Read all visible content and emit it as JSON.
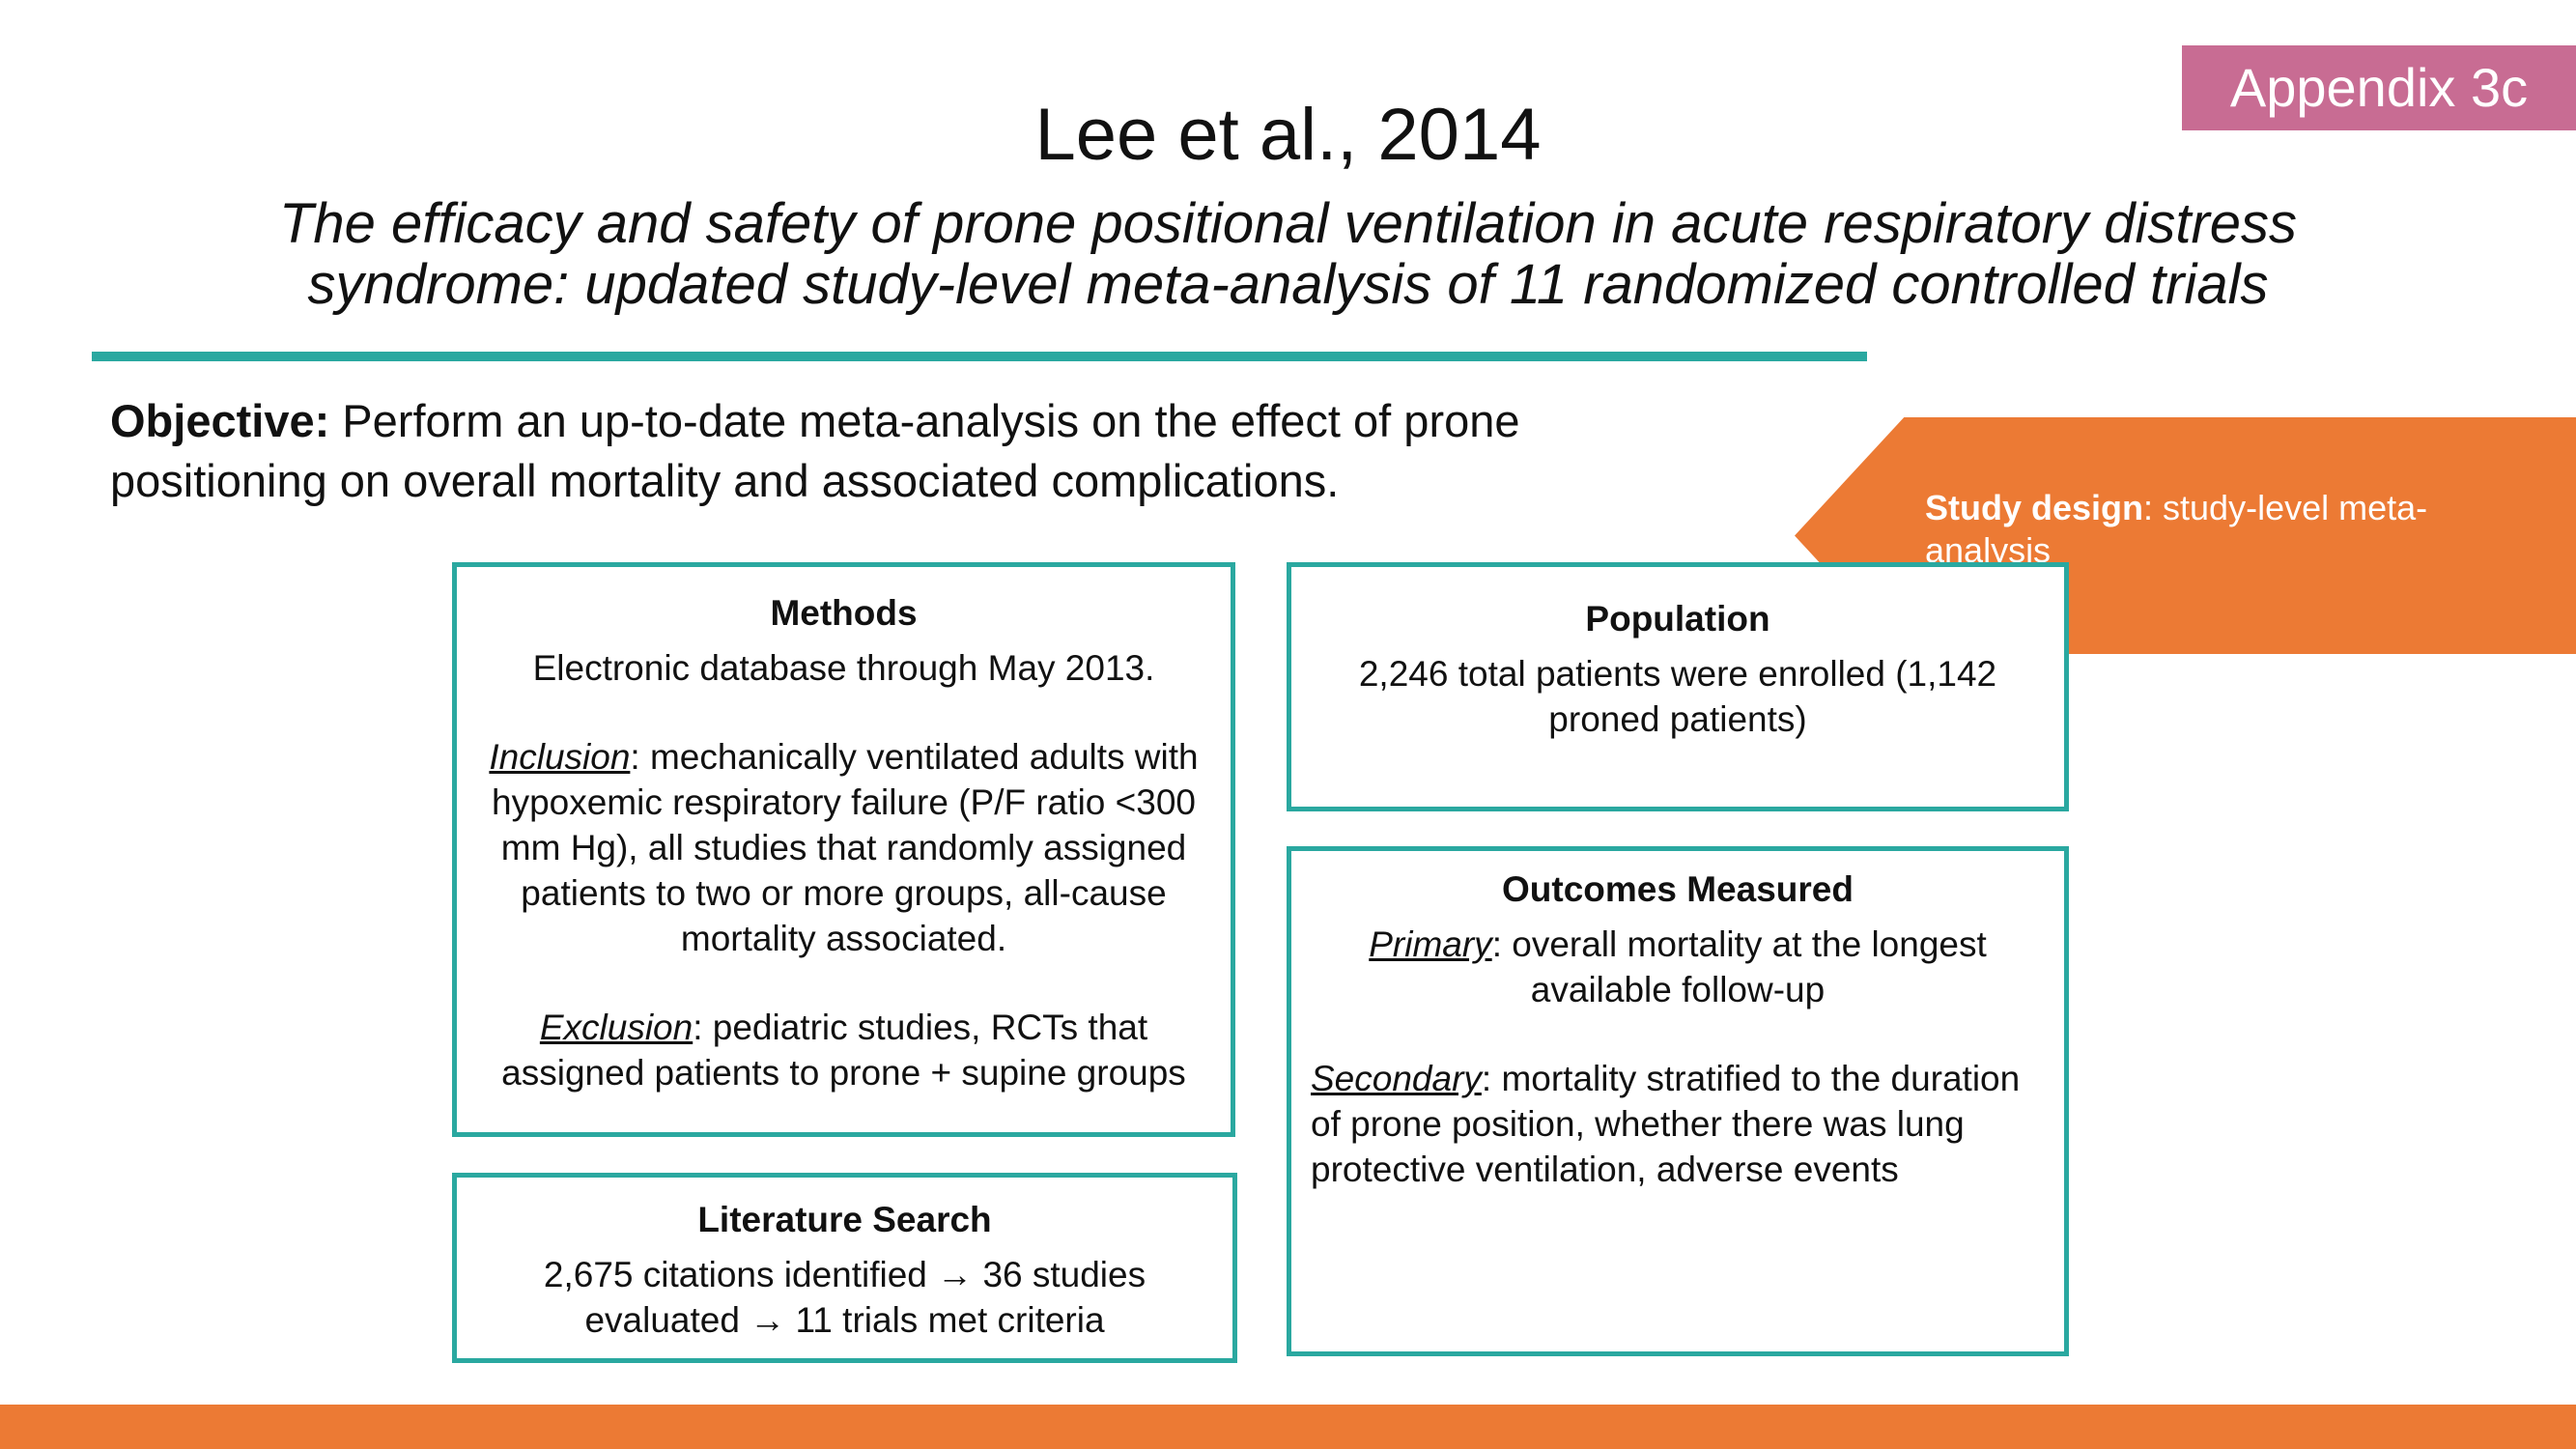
{
  "badge": "Appendix 3c",
  "title": "Lee et al., 2014",
  "subtitle": "The efficacy and safety of prone positional ventilation in acute respiratory distress syndrome: updated study-level meta-analysis of 11 randomized controlled trials",
  "objective": {
    "label": "Objective:",
    "text": " Perform an up-to-date meta-analysis on the effect of prone positioning on overall mortality and associated complications."
  },
  "study_design": {
    "label": "Study design",
    "text": ": study-level meta-analysis"
  },
  "methods": {
    "title": "Methods",
    "line1": "Electronic database through May 2013.",
    "inclusion_label": "Inclusion",
    "inclusion_text": ": mechanically ventilated adults with hypoxemic respiratory failure (P/F ratio <300 mm Hg), all studies that randomly assigned patients to two or more groups, all-cause mortality associated.",
    "exclusion_label": "Exclusion",
    "exclusion_text": ": pediatric studies, RCTs that assigned patients to prone + supine groups"
  },
  "population": {
    "title": "Population",
    "text": "2,246 total patients were enrolled (1,142 proned patients)"
  },
  "literature": {
    "title": "Literature Search",
    "text": "2,675 citations identified → 36 studies evaluated → 11 trials met criteria"
  },
  "outcomes": {
    "title": "Outcomes Measured",
    "primary_label": "Primary",
    "primary_text": ": overall mortality at the longest available follow-up",
    "secondary_label": "Secondary",
    "secondary_text": ": mortality stratified to the duration of prone position, whether there was lung protective ventilation, adverse events"
  },
  "colors": {
    "teal": "#2aa8a0",
    "orange": "#ec7a34",
    "pink": "#c86c93"
  }
}
